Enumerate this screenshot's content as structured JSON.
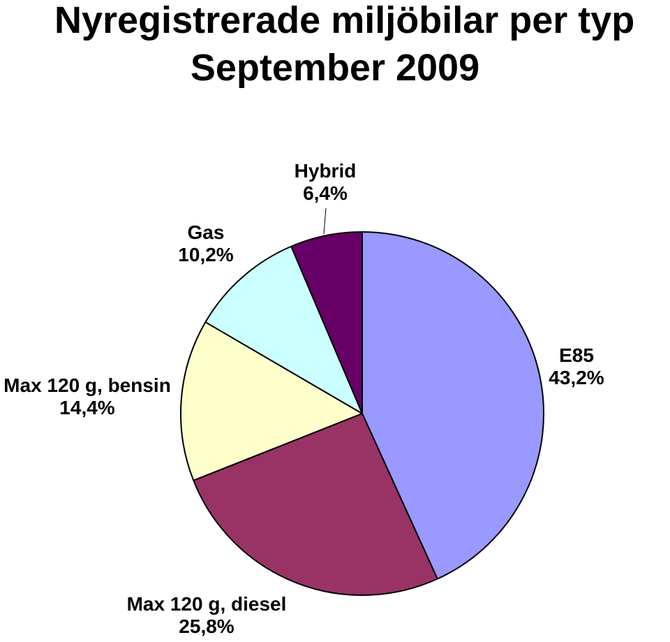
{
  "title_line1": "Nyregistrerade miljöbilar per typ",
  "title_line2": "September 2009",
  "chart_data": {
    "type": "pie",
    "title": "Nyregistrerade miljöbilar per typ September 2009",
    "slices": [
      {
        "name": "E85",
        "value": 43.2,
        "label": "43,2%",
        "color": "#9999FF"
      },
      {
        "name": "Max 120 g, diesel",
        "value": 25.8,
        "label": "25,8%",
        "color": "#993366"
      },
      {
        "name": "Max 120 g, bensin",
        "value": 14.4,
        "label": "14,4%",
        "color": "#FFFFCC"
      },
      {
        "name": "Gas",
        "value": 10.2,
        "label": "10,2%",
        "color": "#CCFFFF"
      },
      {
        "name": "Hybrid",
        "value": 6.4,
        "label": "6,4%",
        "color": "#660066"
      }
    ],
    "start_angle_deg": 0,
    "direction": "clockwise",
    "legend": "none"
  }
}
